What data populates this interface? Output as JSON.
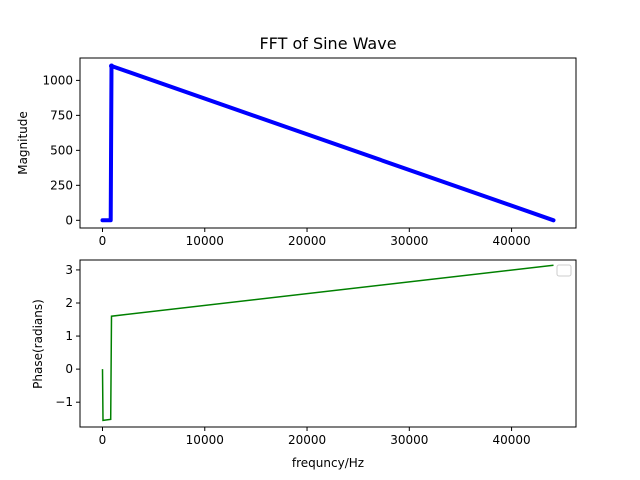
{
  "chart_data": [
    {
      "type": "line",
      "title": "FFT of Sine Wave",
      "xlabel": "",
      "ylabel": "Magnitude",
      "xlim": [
        -2200,
        46300
      ],
      "ylim": [
        -55,
        1160
      ],
      "xticks": [
        0,
        10000,
        20000,
        30000,
        40000
      ],
      "xtick_labels": [
        "0",
        "10000",
        "20000",
        "30000",
        "40000"
      ],
      "yticks": [
        0,
        250,
        500,
        750,
        1000
      ],
      "ytick_labels": [
        "0",
        "250",
        "500",
        "750",
        "1000"
      ],
      "grid": false,
      "marker": "dot",
      "color": "#0000ff",
      "series": [
        {
          "x": [
            0,
            800,
            880,
            44100
          ],
          "y": [
            0,
            0,
            1103,
            0
          ]
        }
      ]
    },
    {
      "type": "line",
      "title": "",
      "xlabel": "frequncy/Hz",
      "ylabel": "Phase(radians)",
      "xlim": [
        -2200,
        46300
      ],
      "ylim": [
        -1.75,
        3.3
      ],
      "xticks": [
        0,
        10000,
        20000,
        30000,
        40000
      ],
      "xtick_labels": [
        "0",
        "10000",
        "20000",
        "30000",
        "40000"
      ],
      "yticks": [
        -1,
        0,
        1,
        2,
        3
      ],
      "ytick_labels": [
        "−1",
        "0",
        "1",
        "2",
        "3"
      ],
      "grid": false,
      "legend": "top-right",
      "color": "#008000",
      "series": [
        {
          "x": [
            0,
            50,
            800,
            880,
            44100
          ],
          "y": [
            0,
            -1.55,
            -1.52,
            1.6,
            3.14
          ]
        }
      ]
    }
  ]
}
